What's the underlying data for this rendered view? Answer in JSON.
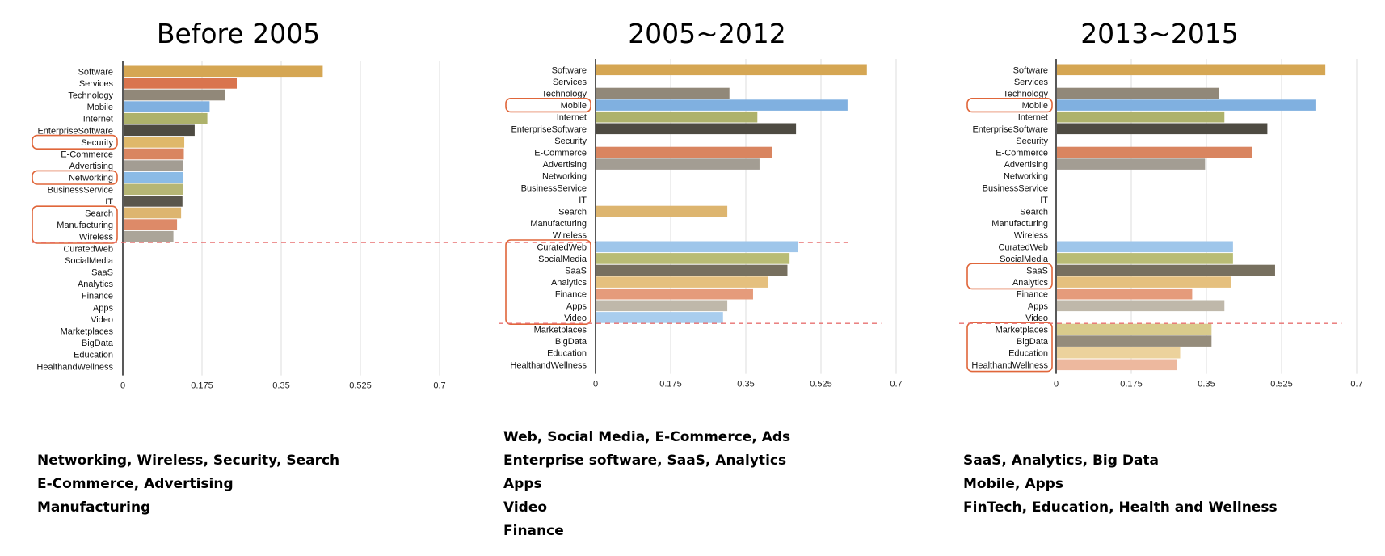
{
  "colors": {
    "Software": "#d5a653",
    "Services": "#d9744e",
    "Technology": "#918879",
    "Mobile": "#80b0e0",
    "Internet": "#aeb26b",
    "EnterpriseSoftware": "#4e4b42",
    "Security": "#dfb86a",
    "E-Commerce": "#d98560",
    "Advertising": "#a39d93",
    "Networking": "#8bbbe6",
    "BusinessService": "#b6b675",
    "IT": "#5a564c",
    "Search": "#ddb56f",
    "Manufacturing": "#dd8a68",
    "Wireless": "#aba599",
    "CuratedWeb": "#9fc6ea",
    "SocialMedia": "#b9bc75",
    "SaaS": "#77705f",
    "Analytics": "#e5c07e",
    "Finance": "#e59b7b",
    "Apps": "#bfb8aa",
    "Video": "#a9cdee",
    "Marketplaces": "#d9cb8c",
    "BigData": "#958c7b",
    "Education": "#ecd29c",
    "HealthandWellness": "#edb89e",
    "highlight": "#e0663a",
    "threshold": "#e87070",
    "grid": "#dddddd"
  },
  "chart_data": [
    {
      "type": "bar",
      "orientation": "horizontal",
      "title": "Before 2005",
      "categories": [
        "Software",
        "Services",
        "Technology",
        "Mobile",
        "Internet",
        "EnterpriseSoftware",
        "Security",
        "E-Commerce",
        "Advertising",
        "Networking",
        "BusinessService",
        "IT",
        "Search",
        "Manufacturing",
        "Wireless",
        "CuratedWeb",
        "SocialMedia",
        "SaaS",
        "Analytics",
        "Finance",
        "Apps",
        "Video",
        "Marketplaces",
        "BigData",
        "Education",
        "HealthandWellness"
      ],
      "values": [
        0.44,
        0.25,
        0.225,
        0.19,
        0.185,
        0.157,
        0.134,
        0.133,
        0.132,
        0.132,
        0.131,
        0.13,
        0.127,
        0.118,
        0.11,
        null,
        null,
        null,
        null,
        null,
        null,
        null,
        null,
        null,
        null,
        null
      ],
      "xticks": [
        "0",
        "0.175",
        "0.35",
        "0.525",
        "0.7"
      ],
      "xlim": [
        0,
        0.7
      ],
      "grid": "vertical",
      "highlighted": [
        "Security",
        "Networking",
        "Search",
        "Manufacturing",
        "Wireless"
      ],
      "threshold_after": "Wireless",
      "caption": [
        "Networking, Wireless, Security, Search",
        "E-Commerce, Advertising",
        "Manufacturing"
      ]
    },
    {
      "type": "bar",
      "orientation": "horizontal",
      "title": "2005~2012",
      "categories": [
        "Software",
        "Services",
        "Technology",
        "Mobile",
        "Internet",
        "EnterpriseSoftware",
        "Security",
        "E-Commerce",
        "Advertising",
        "Networking",
        "BusinessService",
        "IT",
        "Search",
        "Manufacturing",
        "Wireless",
        "CuratedWeb",
        "SocialMedia",
        "SaaS",
        "Analytics",
        "Finance",
        "Apps",
        "Video",
        "Marketplaces",
        "BigData",
        "Education",
        "HealthandWellness"
      ],
      "values": [
        0.63,
        null,
        0.31,
        0.585,
        0.375,
        0.465,
        null,
        0.41,
        0.38,
        null,
        null,
        null,
        0.305,
        null,
        null,
        0.47,
        0.45,
        0.445,
        0.4,
        0.365,
        0.305,
        0.295,
        null,
        null,
        null,
        null
      ],
      "xticks": [
        "0",
        "0.175",
        "0.35",
        "0.525",
        "0.7"
      ],
      "xlim": [
        0,
        0.7
      ],
      "grid": "vertical",
      "highlighted": [
        "Mobile",
        "CuratedWeb",
        "SocialMedia",
        "SaaS",
        "Analytics",
        "Finance",
        "Apps",
        "Video"
      ],
      "threshold_after": "Video",
      "caption": [
        "Web, Social Media, E-Commerce, Ads",
        "Enterprise software, SaaS, Analytics",
        "Apps",
        "Video",
        "Finance"
      ]
    },
    {
      "type": "bar",
      "orientation": "horizontal",
      "title": "2013~2015",
      "categories": [
        "Software",
        "Services",
        "Technology",
        "Mobile",
        "Internet",
        "EnterpriseSoftware",
        "Security",
        "E-Commerce",
        "Advertising",
        "Networking",
        "BusinessService",
        "IT",
        "Search",
        "Manufacturing",
        "Wireless",
        "CuratedWeb",
        "SocialMedia",
        "SaaS",
        "Analytics",
        "Finance",
        "Apps",
        "Video",
        "Marketplaces",
        "BigData",
        "Education",
        "HealthandWellness"
      ],
      "values": [
        0.625,
        null,
        0.378,
        0.602,
        0.39,
        0.49,
        null,
        0.455,
        0.345,
        null,
        null,
        null,
        null,
        null,
        null,
        0.41,
        0.41,
        0.508,
        0.405,
        0.315,
        0.39,
        null,
        0.36,
        0.36,
        0.287,
        0.28
      ],
      "xticks": [
        "0",
        "0.175",
        "0.35",
        "0.525",
        "0.7"
      ],
      "xlim": [
        0,
        0.7
      ],
      "grid": "vertical",
      "highlighted": [
        "Mobile",
        "SaaS",
        "Analytics",
        "Marketplaces",
        "BigData",
        "Education",
        "HealthandWellness"
      ],
      "threshold_after": "Video",
      "caption": [
        "SaaS, Analytics, Big Data",
        "Mobile, Apps",
        "FinTech, Education, Health and Wellness"
      ]
    }
  ]
}
